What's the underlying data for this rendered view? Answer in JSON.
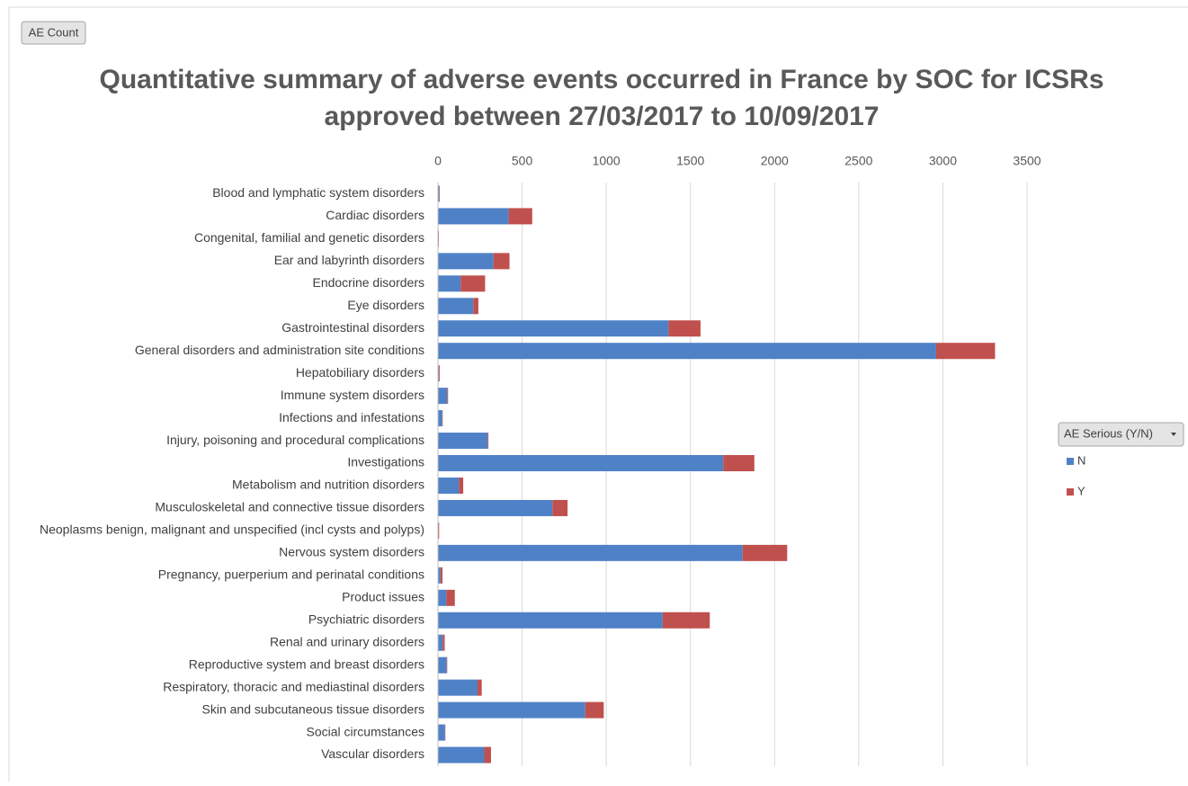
{
  "chart_data": {
    "type": "stacked-bar-horizontal",
    "field_button": "AE Count",
    "title": [
      "Quantitative summary of adverse events occurred in France by SOC for ICSRs",
      "approved between 27/03/2017 to 10/09/2017"
    ],
    "legend_title": "AE Serious (Y/N)",
    "categories": [
      "Blood and lymphatic system disorders",
      "Cardiac disorders",
      "Congenital, familial and genetic disorders",
      "Ear and labyrinth disorders",
      "Endocrine disorders",
      "Eye disorders",
      "Gastrointestinal disorders",
      "General disorders and administration site conditions",
      "Hepatobiliary disorders",
      "Immune system disorders",
      "Infections and infestations",
      "Injury, poisoning and procedural complications",
      "Investigations",
      "Metabolism and nutrition disorders",
      "Musculoskeletal and connective tissue disorders",
      "Neoplasms benign, malignant and unspecified (incl cysts and polyps)",
      "Nervous system disorders",
      "Pregnancy, puerperium and perinatal conditions",
      "Product issues",
      "Psychiatric disorders",
      "Renal and urinary disorders",
      "Reproductive system and breast disorders",
      "Respiratory, thoracic and mediastinal disorders",
      "Skin and subcutaneous tissue disorders",
      "Social circumstances",
      "Vascular disorders"
    ],
    "series": [
      {
        "name": "N",
        "color": "#4f81c7",
        "values": [
          8,
          420,
          0,
          330,
          135,
          210,
          1370,
          2960,
          5,
          55,
          25,
          295,
          1695,
          125,
          680,
          2,
          1810,
          15,
          50,
          1335,
          28,
          52,
          235,
          875,
          42,
          275
        ]
      },
      {
        "name": "Y",
        "color": "#c0504d",
        "values": [
          2,
          140,
          5,
          95,
          145,
          30,
          190,
          350,
          5,
          5,
          3,
          5,
          185,
          25,
          90,
          5,
          265,
          12,
          50,
          280,
          12,
          3,
          25,
          110,
          2,
          40
        ]
      }
    ],
    "xlim": [
      0,
      3500
    ],
    "xticks": [
      0,
      500,
      1000,
      1500,
      2000,
      2500,
      3000,
      3500
    ],
    "grid": true,
    "legend": "right"
  }
}
